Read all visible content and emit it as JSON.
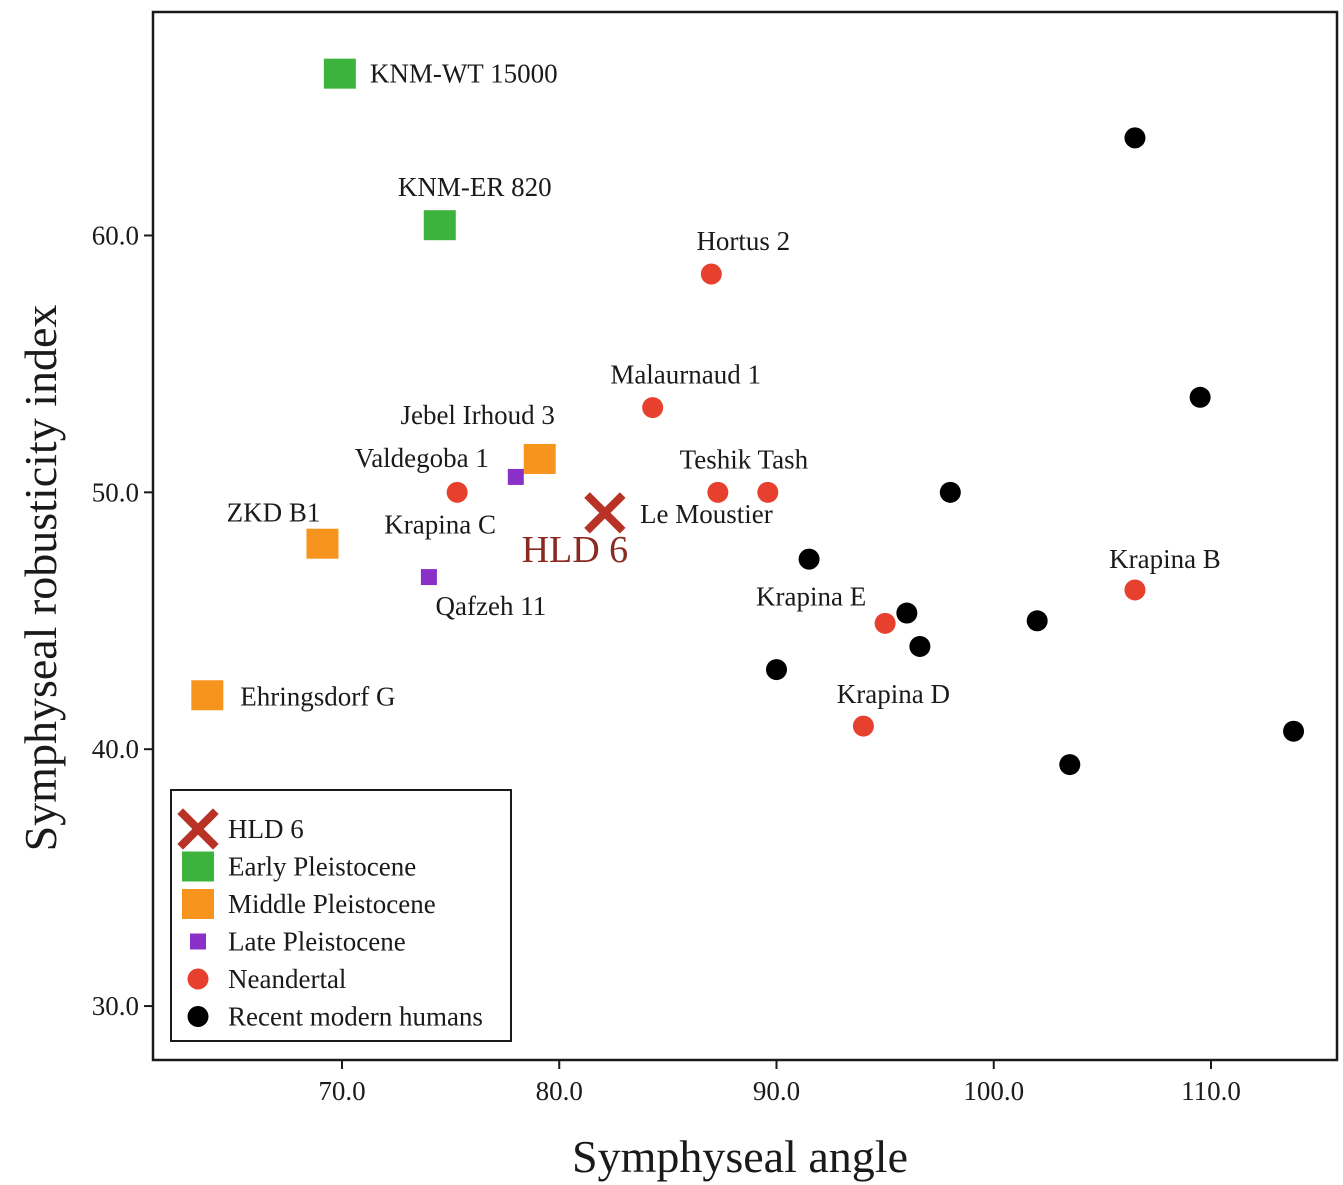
{
  "chart_data": {
    "type": "scatter",
    "title": "",
    "xlabel": "Symphyseal angle",
    "ylabel": "Symphyseal robusticity index",
    "xlim": [
      61.3,
      115.8
    ],
    "ylim": [
      27.9,
      68.7
    ],
    "x_ticks": [
      70,
      80,
      90,
      100,
      110
    ],
    "y_ticks": [
      30,
      40,
      50,
      60
    ],
    "x_tick_labels": [
      "70.0",
      "80.0",
      "90.0",
      "100.0",
      "110.0"
    ],
    "y_tick_labels": [
      "30.0",
      "40.0",
      "50.0",
      "60.0"
    ],
    "grid": false,
    "legend_position": "bottom-left",
    "colors": {
      "HLD 6": "#b83226",
      "Early Pleistocene": "#3cb33c",
      "Middle Pleistocene": "#f7941d",
      "Late Pleistocene": "#8b2fc9",
      "Neandertal": "#e8402e",
      "Recent modern humans": "#000000"
    },
    "series": [
      {
        "name": "HLD 6",
        "marker": "x",
        "points": [
          {
            "x": 82.1,
            "y": 49.2,
            "label": "HLD 6"
          }
        ]
      },
      {
        "name": "Early Pleistocene",
        "marker": "square",
        "points": [
          {
            "x": 69.9,
            "y": 66.3,
            "label": "KNM-WT 15000"
          },
          {
            "x": 74.5,
            "y": 60.4,
            "label": "KNM-ER 820"
          }
        ]
      },
      {
        "name": "Middle Pleistocene",
        "marker": "square",
        "points": [
          {
            "x": 79.1,
            "y": 51.3,
            "label": "Jebel Irhoud 3"
          },
          {
            "x": 69.1,
            "y": 48.0,
            "label": "ZKD B1"
          },
          {
            "x": 63.8,
            "y": 42.1,
            "label": "Ehringsdorf G"
          }
        ]
      },
      {
        "name": "Late Pleistocene",
        "marker": "square-small",
        "points": [
          {
            "x": 78.0,
            "y": 50.6,
            "label": "Valdegoba 1"
          },
          {
            "x": 74.0,
            "y": 46.7,
            "label": "Qafzeh 11"
          }
        ]
      },
      {
        "name": "Neandertal",
        "marker": "circle",
        "points": [
          {
            "x": 87.0,
            "y": 58.5,
            "label": "Hortus 2"
          },
          {
            "x": 84.3,
            "y": 53.3,
            "label": "Malaurnaud 1"
          },
          {
            "x": 87.3,
            "y": 50.0,
            "label": "Teshik Tash"
          },
          {
            "x": 89.6,
            "y": 50.0,
            "label": ""
          },
          {
            "x": 75.3,
            "y": 50.0,
            "label": "Krapina C"
          },
          {
            "x": 106.5,
            "y": 46.2,
            "label": "Krapina B"
          },
          {
            "x": 95.0,
            "y": 44.9,
            "label": "Krapina E"
          },
          {
            "x": 94.0,
            "y": 40.9,
            "label": "Krapina D"
          }
        ]
      },
      {
        "name": "Recent modern humans",
        "marker": "circle",
        "points": [
          {
            "x": 106.5,
            "y": 63.8
          },
          {
            "x": 109.5,
            "y": 53.7
          },
          {
            "x": 98.0,
            "y": 50.0
          },
          {
            "x": 91.5,
            "y": 47.4
          },
          {
            "x": 96.0,
            "y": 45.3
          },
          {
            "x": 102.0,
            "y": 45.0
          },
          {
            "x": 96.6,
            "y": 44.0
          },
          {
            "x": 90.0,
            "y": 43.1
          },
          {
            "x": 113.8,
            "y": 40.7
          },
          {
            "x": 103.5,
            "y": 39.4
          }
        ]
      }
    ],
    "annotations": [
      "Le Moustier"
    ],
    "legend": [
      {
        "label": "HLD 6",
        "marker": "x",
        "color": "#b83226"
      },
      {
        "label": "Early Pleistocene",
        "marker": "square",
        "color": "#3cb33c"
      },
      {
        "label": "Middle Pleistocene",
        "marker": "square",
        "color": "#f7941d"
      },
      {
        "label": "Late Pleistocene",
        "marker": "square-small",
        "color": "#8b2fc9"
      },
      {
        "label": "Neandertal",
        "marker": "circle",
        "color": "#e8402e"
      },
      {
        "label": "Recent modern humans",
        "marker": "circle",
        "color": "#000000"
      }
    ]
  }
}
